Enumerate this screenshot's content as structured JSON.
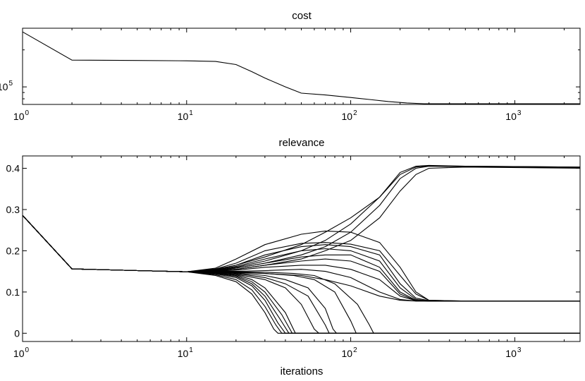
{
  "chart_data": [
    {
      "type": "line",
      "title": "cost",
      "xlabel": "",
      "ylabel": "",
      "xscale": "log",
      "yscale": "log",
      "xlim": [
        1,
        2500
      ],
      "ylim": [
        72000,
        300000
      ],
      "grid": false,
      "x_ticks": [
        {
          "base": "10",
          "exp": "0",
          "value": 1
        },
        {
          "base": "10",
          "exp": "1",
          "value": 10
        },
        {
          "base": "10",
          "exp": "2",
          "value": 100
        },
        {
          "base": "10",
          "exp": "3",
          "value": 1000
        }
      ],
      "y_ticks": [
        {
          "base": "10",
          "exp": "5",
          "value": 100000
        }
      ],
      "series": [
        {
          "x": [
            1,
            2,
            5,
            10,
            15,
            20,
            25,
            30,
            40,
            50,
            70,
            100,
            130,
            170,
            220,
            280,
            2500
          ],
          "y": [
            280000,
            165000,
            164000,
            163000,
            161000,
            152000,
            133000,
            118000,
            100000,
            89000,
            86000,
            82000,
            79000,
            76000,
            74000,
            73000,
            73000
          ]
        }
      ]
    },
    {
      "type": "line",
      "title": "relevance",
      "xlabel": "iterations",
      "ylabel": "",
      "xscale": "log",
      "xlim": [
        1,
        2500
      ],
      "ylim": [
        -0.02,
        0.43
      ],
      "grid": false,
      "x_ticks": [
        {
          "base": "10",
          "exp": "0",
          "value": 1
        },
        {
          "base": "10",
          "exp": "1",
          "value": 10
        },
        {
          "base": "10",
          "exp": "2",
          "value": 100
        },
        {
          "base": "10",
          "exp": "3",
          "value": 1000
        }
      ],
      "y_ticks": [
        "0",
        "0.1",
        "0.2",
        "0.3",
        "0.4"
      ],
      "series": [
        {
          "x": [
            1,
            2,
            5,
            10,
            15,
            20,
            30,
            50,
            70,
            100,
            150,
            200,
            250,
            300,
            500,
            2500
          ],
          "y": [
            0.286,
            0.156,
            0.152,
            0.149,
            0.155,
            0.165,
            0.185,
            0.215,
            0.245,
            0.28,
            0.33,
            0.385,
            0.403,
            0.406,
            0.405,
            0.403
          ]
        },
        {
          "x": [
            1,
            2,
            5,
            10,
            15,
            20,
            30,
            50,
            70,
            100,
            150,
            200,
            250,
            300,
            500,
            2500
          ],
          "y": [
            0.286,
            0.156,
            0.152,
            0.149,
            0.153,
            0.16,
            0.175,
            0.2,
            0.225,
            0.265,
            0.33,
            0.39,
            0.405,
            0.407,
            0.405,
            0.403
          ]
        },
        {
          "x": [
            1,
            2,
            5,
            10,
            15,
            20,
            30,
            50,
            70,
            100,
            150,
            200,
            250,
            300,
            500,
            2500
          ],
          "y": [
            0.286,
            0.156,
            0.152,
            0.149,
            0.152,
            0.158,
            0.17,
            0.19,
            0.21,
            0.245,
            0.31,
            0.375,
            0.4,
            0.405,
            0.404,
            0.402
          ]
        },
        {
          "x": [
            1,
            2,
            5,
            10,
            15,
            20,
            30,
            50,
            70,
            100,
            150,
            200,
            250,
            300,
            500,
            2500
          ],
          "y": [
            0.286,
            0.156,
            0.152,
            0.149,
            0.151,
            0.155,
            0.165,
            0.18,
            0.2,
            0.225,
            0.28,
            0.345,
            0.385,
            0.4,
            0.403,
            0.4
          ]
        },
        {
          "x": [
            1,
            2,
            5,
            10,
            15,
            20,
            30,
            50,
            70,
            100,
            150,
            200,
            250,
            300,
            500,
            2500
          ],
          "y": [
            0.286,
            0.156,
            0.152,
            0.149,
            0.158,
            0.18,
            0.215,
            0.24,
            0.248,
            0.245,
            0.22,
            0.16,
            0.1,
            0.08,
            0.078,
            0.078
          ]
        },
        {
          "x": [
            1,
            2,
            5,
            10,
            15,
            20,
            30,
            50,
            70,
            100,
            150,
            200,
            250,
            300,
            500,
            2500
          ],
          "y": [
            0.286,
            0.156,
            0.152,
            0.149,
            0.156,
            0.17,
            0.2,
            0.218,
            0.22,
            0.216,
            0.2,
            0.14,
            0.095,
            0.08,
            0.078,
            0.078
          ]
        },
        {
          "x": [
            1,
            2,
            5,
            10,
            15,
            20,
            30,
            50,
            70,
            100,
            150,
            200,
            250,
            300,
            500,
            2500
          ],
          "y": [
            0.286,
            0.156,
            0.152,
            0.149,
            0.155,
            0.165,
            0.19,
            0.21,
            0.215,
            0.21,
            0.19,
            0.12,
            0.085,
            0.079,
            0.078,
            0.078
          ]
        },
        {
          "x": [
            1,
            2,
            5,
            10,
            15,
            20,
            30,
            50,
            70,
            100,
            150,
            200,
            250,
            300,
            500,
            2500
          ],
          "y": [
            0.286,
            0.156,
            0.152,
            0.149,
            0.154,
            0.162,
            0.18,
            0.2,
            0.205,
            0.2,
            0.175,
            0.11,
            0.082,
            0.078,
            0.078,
            0.078
          ]
        },
        {
          "x": [
            1,
            2,
            5,
            10,
            15,
            20,
            30,
            50,
            70,
            100,
            150,
            200,
            250,
            300,
            500,
            2500
          ],
          "y": [
            0.286,
            0.156,
            0.152,
            0.149,
            0.153,
            0.158,
            0.17,
            0.185,
            0.19,
            0.19,
            0.16,
            0.1,
            0.08,
            0.078,
            0.078,
            0.078
          ]
        },
        {
          "x": [
            1,
            2,
            5,
            10,
            15,
            20,
            30,
            50,
            70,
            100,
            150,
            200,
            250,
            300,
            500,
            2500
          ],
          "y": [
            0.286,
            0.156,
            0.152,
            0.149,
            0.152,
            0.155,
            0.165,
            0.175,
            0.18,
            0.175,
            0.15,
            0.095,
            0.079,
            0.078,
            0.078,
            0.078
          ]
        },
        {
          "x": [
            1,
            2,
            5,
            10,
            15,
            20,
            30,
            50,
            70,
            100,
            150,
            200,
            250,
            300,
            500,
            2500
          ],
          "y": [
            0.286,
            0.156,
            0.152,
            0.149,
            0.151,
            0.153,
            0.16,
            0.165,
            0.165,
            0.155,
            0.13,
            0.09,
            0.079,
            0.078,
            0.078,
            0.078
          ]
        },
        {
          "x": [
            1,
            2,
            5,
            10,
            15,
            20,
            30,
            50,
            70,
            100,
            150,
            200,
            250,
            300,
            500,
            2500
          ],
          "y": [
            0.286,
            0.156,
            0.152,
            0.149,
            0.15,
            0.15,
            0.152,
            0.155,
            0.15,
            0.135,
            0.1,
            0.082,
            0.078,
            0.078,
            0.078,
            0.078
          ]
        },
        {
          "x": [
            1,
            2,
            5,
            10,
            15,
            20,
            30,
            50,
            70,
            100,
            150,
            200,
            250,
            300,
            500,
            2500
          ],
          "y": [
            0.286,
            0.156,
            0.152,
            0.149,
            0.149,
            0.147,
            0.145,
            0.14,
            0.13,
            0.115,
            0.09,
            0.08,
            0.078,
            0.078,
            0.078,
            0.078
          ]
        },
        {
          "x": [
            1,
            2,
            5,
            10,
            15,
            20,
            25,
            30,
            34,
            36,
            40,
            2500
          ],
          "y": [
            0.286,
            0.156,
            0.152,
            0.149,
            0.14,
            0.125,
            0.095,
            0.05,
            0.01,
            0,
            0,
            0
          ]
        },
        {
          "x": [
            1,
            2,
            5,
            10,
            15,
            20,
            25,
            30,
            35,
            38,
            42,
            2500
          ],
          "y": [
            0.286,
            0.156,
            0.152,
            0.149,
            0.142,
            0.13,
            0.105,
            0.065,
            0.02,
            0,
            0,
            0
          ]
        },
        {
          "x": [
            1,
            2,
            5,
            10,
            15,
            20,
            25,
            30,
            36,
            40,
            44,
            2500
          ],
          "y": [
            0.286,
            0.156,
            0.152,
            0.149,
            0.144,
            0.135,
            0.115,
            0.08,
            0.025,
            0,
            0,
            0
          ]
        },
        {
          "x": [
            1,
            2,
            5,
            10,
            15,
            20,
            25,
            30,
            37,
            42,
            46,
            2500
          ],
          "y": [
            0.286,
            0.156,
            0.152,
            0.149,
            0.145,
            0.138,
            0.12,
            0.09,
            0.035,
            0,
            0,
            0
          ]
        },
        {
          "x": [
            1,
            2,
            5,
            10,
            15,
            20,
            25,
            30,
            38,
            44,
            48,
            2500
          ],
          "y": [
            0.286,
            0.156,
            0.152,
            0.149,
            0.146,
            0.14,
            0.125,
            0.1,
            0.045,
            0,
            0,
            0
          ]
        },
        {
          "x": [
            1,
            2,
            5,
            10,
            15,
            20,
            25,
            30,
            40,
            46,
            50,
            2500
          ],
          "y": [
            0.286,
            0.156,
            0.152,
            0.149,
            0.147,
            0.142,
            0.13,
            0.11,
            0.05,
            0,
            0,
            0
          ]
        },
        {
          "x": [
            1,
            2,
            5,
            10,
            15,
            20,
            30,
            40,
            50,
            60,
            64,
            2500
          ],
          "y": [
            0.286,
            0.156,
            0.152,
            0.149,
            0.147,
            0.143,
            0.13,
            0.11,
            0.07,
            0.01,
            0,
            0
          ]
        },
        {
          "x": [
            1,
            2,
            5,
            10,
            15,
            20,
            30,
            40,
            55,
            70,
            74,
            2500
          ],
          "y": [
            0.286,
            0.156,
            0.152,
            0.149,
            0.148,
            0.145,
            0.135,
            0.12,
            0.09,
            0.02,
            0,
            0
          ]
        },
        {
          "x": [
            1,
            2,
            5,
            10,
            15,
            20,
            30,
            40,
            55,
            70,
            78,
            82,
            2500
          ],
          "y": [
            0.286,
            0.156,
            0.152,
            0.149,
            0.148,
            0.146,
            0.14,
            0.13,
            0.11,
            0.06,
            0.01,
            0,
            0
          ]
        },
        {
          "x": [
            1,
            2,
            5,
            10,
            15,
            20,
            30,
            45,
            60,
            80,
            100,
            108,
            2500
          ],
          "y": [
            0.286,
            0.156,
            0.152,
            0.149,
            0.149,
            0.148,
            0.145,
            0.14,
            0.13,
            0.1,
            0.03,
            0,
            0
          ]
        },
        {
          "x": [
            1,
            2,
            5,
            10,
            15,
            20,
            30,
            45,
            60,
            80,
            110,
            130,
            138,
            2500
          ],
          "y": [
            0.286,
            0.156,
            0.152,
            0.149,
            0.149,
            0.149,
            0.148,
            0.145,
            0.14,
            0.12,
            0.07,
            0.02,
            0,
            0
          ]
        }
      ]
    }
  ]
}
